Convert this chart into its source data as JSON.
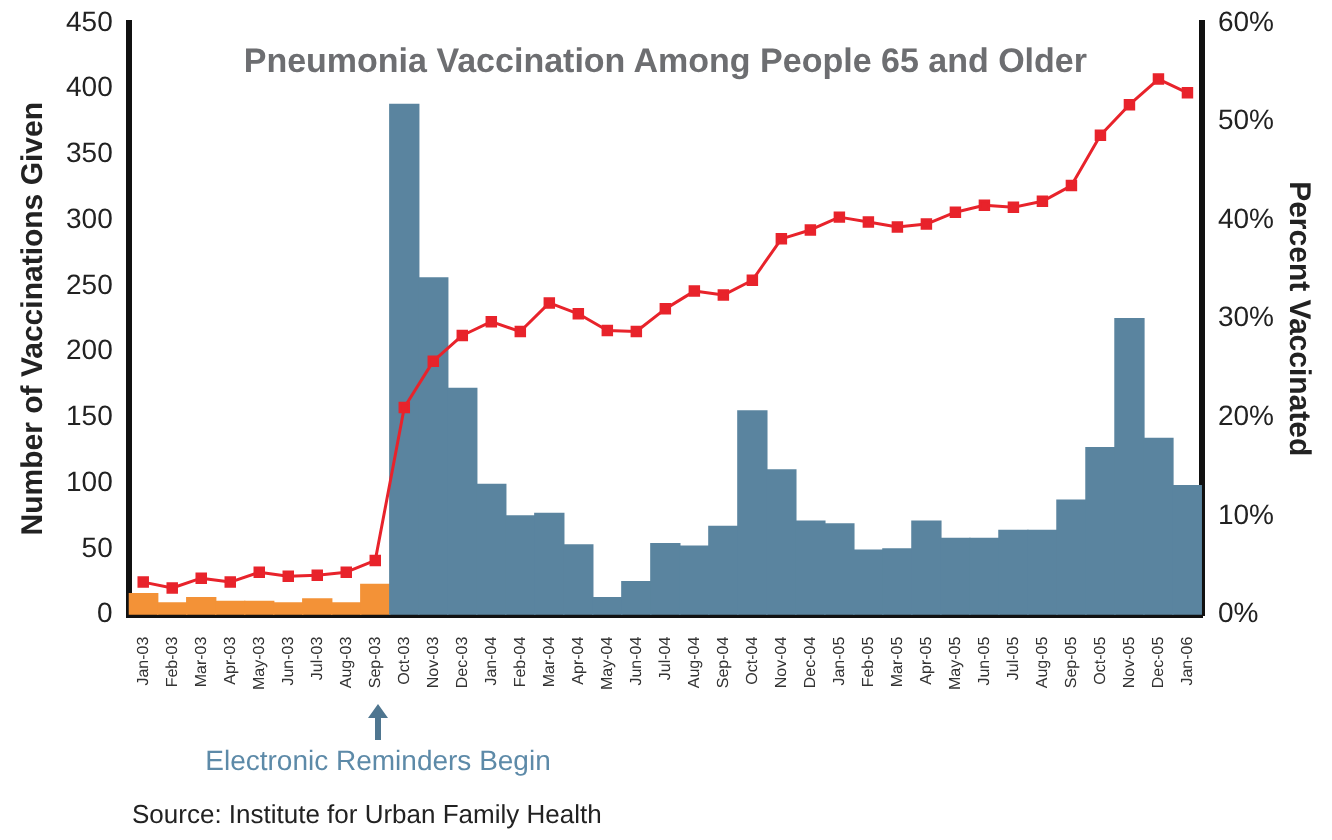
{
  "chart_data": {
    "type": "bar",
    "title": "Pneumonia Vaccination Among People 65 and Older",
    "ylabel": "Number of Vaccinations Given",
    "y2label": "Percent Vaccinated",
    "categories": [
      "Jan-03",
      "Feb-03",
      "Mar-03",
      "Apr-03",
      "May-03",
      "Jun-03",
      "Jul-03",
      "Aug-03",
      "Sep-03",
      "Oct-03",
      "Nov-03",
      "Dec-03",
      "Jan-04",
      "Feb-04",
      "Mar-04",
      "Apr-04",
      "May-04",
      "Jun-04",
      "Jul-04",
      "Aug-04",
      "Sep-04",
      "Oct-04",
      "Nov-04",
      "Dec-04",
      "Jan-05",
      "Feb-05",
      "Mar-05",
      "Apr-05",
      "May-05",
      "Jun-05",
      "Jul-05",
      "Aug-05",
      "Sep-05",
      "Oct-05",
      "Nov-05",
      "Dec-05",
      "Jan-06"
    ],
    "series": [
      {
        "colors": [
          "#f39237",
          "#f39237",
          "#f39237",
          "#f39237",
          "#f39237",
          "#f39237",
          "#f39237",
          "#f39237",
          "#f39237",
          "#5a849f",
          "#5a849f",
          "#5a849f",
          "#5a849f",
          "#5a849f",
          "#5a849f",
          "#5a849f",
          "#5a849f",
          "#5a849f",
          "#5a849f",
          "#5a849f",
          "#5a849f",
          "#5a849f",
          "#5a849f",
          "#5a849f",
          "#5a849f",
          "#5a849f",
          "#5a849f",
          "#5a849f",
          "#5a849f",
          "#5a849f",
          "#5a849f",
          "#5a849f",
          "#5a849f",
          "#5a849f",
          "#5a849f",
          "#5a849f",
          "#5a849f"
        ],
        "values": [
          16,
          9,
          13,
          10,
          10,
          9,
          12,
          9,
          23,
          388,
          256,
          172,
          99,
          75,
          77,
          53,
          13,
          25,
          54,
          52,
          67,
          155,
          110,
          71,
          69,
          49,
          50,
          71,
          58,
          58,
          64,
          64,
          87,
          127,
          225,
          134,
          98
        ]
      },
      {
        "type": "line",
        "axis": "y2",
        "color": "#e8232b",
        "marker": "square",
        "values": [
          3.3,
          2.7,
          3.7,
          3.3,
          4.3,
          3.9,
          4.0,
          4.3,
          5.5,
          21.0,
          25.7,
          28.3,
          29.7,
          28.7,
          31.6,
          30.5,
          28.8,
          28.7,
          31.0,
          32.8,
          32.4,
          33.9,
          38.1,
          39.0,
          40.3,
          39.8,
          39.3,
          39.6,
          40.8,
          41.5,
          41.3,
          41.9,
          43.5,
          48.6,
          51.7,
          54.3,
          52.9
        ]
      }
    ],
    "ylim": [
      0,
      450
    ],
    "yticks": [
      0,
      50,
      100,
      150,
      200,
      250,
      300,
      350,
      400,
      450
    ],
    "y2lim": [
      0,
      60
    ],
    "y2ticks": [
      {
        "value": 0,
        "label": "0%"
      },
      {
        "value": 10,
        "label": "10%"
      },
      {
        "value": 20,
        "label": "20%"
      },
      {
        "value": 30,
        "label": "30%"
      },
      {
        "value": 40,
        "label": "40%"
      },
      {
        "value": 50,
        "label": "50%"
      },
      {
        "value": 60,
        "label": "60%"
      }
    ],
    "grid": false,
    "legend": false,
    "annotations": [
      "Electronic Reminders Begin",
      "Source: Institute for Urban Family Health"
    ]
  }
}
